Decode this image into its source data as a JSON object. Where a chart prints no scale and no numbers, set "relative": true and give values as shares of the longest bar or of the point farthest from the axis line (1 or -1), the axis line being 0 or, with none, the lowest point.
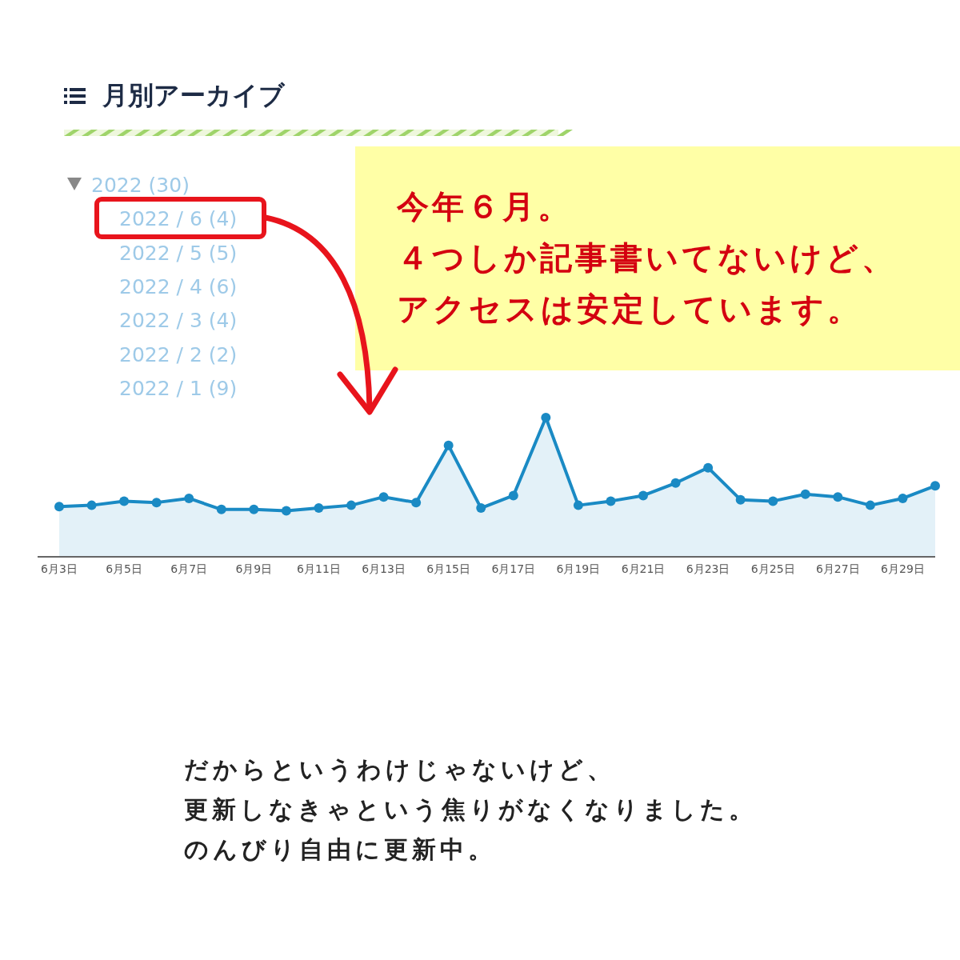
{
  "chart_data": {
    "type": "area",
    "title": "月別アーカイブ",
    "relative": true,
    "marker": "circle",
    "color": "#1a8ac4",
    "categories": [
      "6月3日",
      null,
      "6月5日",
      null,
      "6月7日",
      null,
      "6月9日",
      null,
      "6月11日",
      null,
      "6月13日",
      null,
      "6月15日",
      null,
      "6月17日",
      null,
      "6月19日",
      null,
      "6月21日",
      null,
      "6月23日",
      null,
      "6月25日",
      null,
      "6月27日",
      null,
      "6月29日",
      null
    ],
    "values": [
      0.36,
      0.37,
      0.4,
      0.39,
      0.42,
      0.34,
      0.34,
      0.33,
      0.35,
      0.37,
      0.43,
      0.39,
      0.8,
      0.35,
      0.44,
      1,
      0.37,
      0.4,
      0.44,
      0.53,
      0.64,
      0.41,
      0.4,
      0.45,
      0.43,
      0.37,
      0.42,
      0.51
    ],
    "annotations": [
      "2022 (30)",
      "2022 / 6 (4)",
      "2022 / 5 (5)",
      "2022 / 4 (6)",
      "2022 / 3 (4)",
      "2022 / 2 (2)",
      "2022 / 1 (9)",
      "今年６月。",
      "４つしか記事書いてないけど、",
      "アクセスは安定しています。",
      "だからというわけじゃないけど、",
      "更新しなきゃという焦りがなくなりました。",
      "のんびり自由に更新中。"
    ]
  }
}
